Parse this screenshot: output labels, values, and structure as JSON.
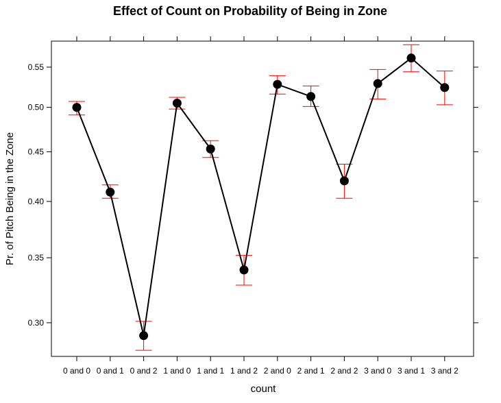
{
  "chart_data": {
    "type": "line",
    "title": "Effect of Count on Probability of Being in Zone",
    "xlabel": "count",
    "ylabel": "Pr. of Pitch Being in the Zone",
    "categories": [
      "0 and 0",
      "0 and 1",
      "0 and 2",
      "1 and 0",
      "1 and 1",
      "1 and 2",
      "2 and 0",
      "2 and 1",
      "2 and 2",
      "3 and 0",
      "3 and 1",
      "3 and 2"
    ],
    "series": [
      {
        "values": [
          0.5,
          0.409,
          0.291,
          0.505,
          0.453,
          0.34,
          0.528,
          0.513,
          0.42,
          0.529,
          0.562,
          0.524
        ],
        "lower": [
          0.491,
          0.403,
          0.281,
          0.498,
          0.444,
          0.328,
          0.516,
          0.501,
          0.403,
          0.51,
          0.544,
          0.503
        ],
        "upper": [
          0.507,
          0.416,
          0.301,
          0.512,
          0.462,
          0.352,
          0.539,
          0.526,
          0.437,
          0.547,
          0.58,
          0.545
        ]
      }
    ],
    "yticks": [
      "0.30",
      "0.35",
      "0.40",
      "0.45",
      "0.50",
      "0.55"
    ],
    "ytick_values": [
      0.3,
      0.35,
      0.4,
      0.45,
      0.5,
      0.55
    ],
    "ylim": [
      0.277,
      0.585
    ],
    "ylog": true,
    "grid": false,
    "colors": {
      "line": "#000000",
      "marker": "#000000",
      "error_bar": "#ff0000",
      "frame": "#000000"
    }
  }
}
